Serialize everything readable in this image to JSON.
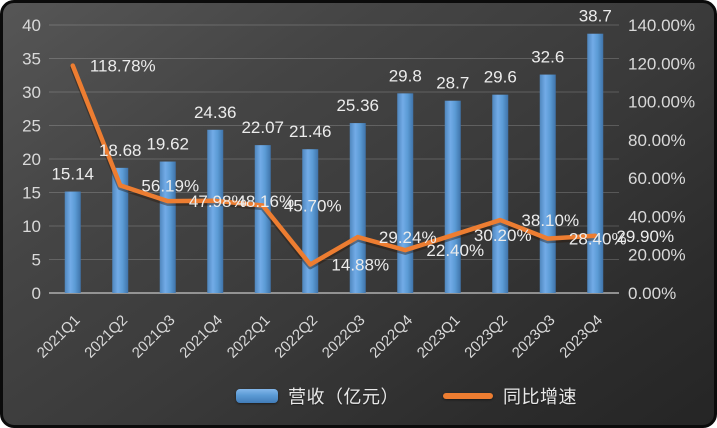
{
  "chart_data": {
    "type": "bar",
    "combo": "bar+line",
    "title": "",
    "categories": [
      "2021Q1",
      "2021Q2",
      "2021Q3",
      "2021Q4",
      "2022Q1",
      "2022Q2",
      "2022Q3",
      "2022Q4",
      "2023Q1",
      "2023Q2",
      "2023Q3",
      "2023Q4"
    ],
    "series": [
      {
        "name": "营收（亿元）",
        "type": "bar",
        "axis": "left",
        "color": "#5b9bd5",
        "values": [
          15.14,
          18.68,
          19.62,
          24.36,
          22.07,
          21.46,
          25.36,
          29.8,
          28.7,
          29.6,
          32.6,
          38.7
        ],
        "labels": [
          "15.14",
          "18.68",
          "19.62",
          "24.36",
          "22.07",
          "21.46",
          "25.36",
          "29.8",
          "28.7",
          "29.6",
          "32.6",
          "38.7"
        ]
      },
      {
        "name": "同比增速",
        "type": "line",
        "axis": "right",
        "color": "#ed7d31",
        "values": [
          118.78,
          56.19,
          47.98,
          48.16,
          45.7,
          14.88,
          29.24,
          22.4,
          30.2,
          38.1,
          28.4,
          29.9
        ],
        "labels": [
          "118.78%",
          "56.19%",
          "47.98%",
          "48.16%",
          "45.70%",
          "14.88%",
          "29.24%",
          "22.40%",
          "30.20%",
          "38.10%",
          "28.40%",
          "29.90%"
        ]
      }
    ],
    "left_axis": {
      "min": 0,
      "max": 40,
      "step": 5,
      "ticks": [
        "0",
        "5",
        "10",
        "15",
        "20",
        "25",
        "30",
        "35",
        "40"
      ]
    },
    "right_axis": {
      "min": 0,
      "max": 140,
      "step": 20,
      "ticks": [
        "0.00%",
        "20.00%",
        "40.00%",
        "60.00%",
        "80.00%",
        "100.00%",
        "120.00%",
        "140.00%"
      ]
    },
    "grid": true,
    "legend_position": "bottom"
  },
  "colors": {
    "background_top": "#565656",
    "background_bottom": "#252525",
    "bar": "#5b9bd5",
    "line": "#ed7d31",
    "axis_text": "#d9d9d9",
    "data_label": "#ececec",
    "gridline": "rgba(255,255,255,0.18)",
    "axis_line": "#b0b0b0"
  }
}
